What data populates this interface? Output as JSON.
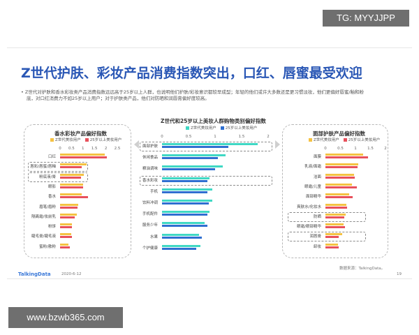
{
  "overlay": {
    "tg_label": "TG: MYYJJPP",
    "url_label": "www.bzwb365.com"
  },
  "slide": {
    "title": "Z世代护肤、彩妆产品消费指数突出，口红、唇蜜最受欢迎",
    "desc_line1": "• Z世代对护肤和香水彩妆类产品消费指数远远高于25岁以上人群，也说明他们护肤/彩妆意识都较早成型；年轻的他们或许大多数还是更习惯淡妆，他们更偏好唇蜜/釉和粉",
    "desc_line2": "底，对口红消费力不如25岁以上用户；对于护肤类产品，他们对防晒和润唇膏偏好度较高。",
    "brand": "TalkingData",
    "date": "2020-6-12",
    "source": "数据来源：TalkingData。",
    "page": "19"
  },
  "colors": {
    "z_gen": "#f5c242",
    "over25": "#e8505b",
    "z_gen_center": "#3fd8c4",
    "over25_center": "#2f6fd1",
    "title": "#2a57b5"
  },
  "chart_data": [
    {
      "type": "bar",
      "orientation": "horizontal",
      "title": "香水彩妆产品偏好指数",
      "xlim": [
        0,
        2.5
      ],
      "xticks": [
        "0",
        "0.5",
        "1",
        "1.5",
        "2",
        "2.5"
      ],
      "categories": [
        "口红",
        "唇彩/唇蜜/唇釉",
        "粉底液/膏",
        "眼影",
        "香水",
        "眉笔/眉粉",
        "隔离霜/妆前乳",
        "粉饼",
        "睫毛膏/睫毛液",
        "蜜粉/散粉"
      ],
      "highlighted": [
        "唇彩/唇蜜/唇釉",
        "粉底液/膏"
      ],
      "series": [
        {
          "name": "Z世代美妆用户",
          "values": [
            1.95,
            1.15,
            1.05,
            1.0,
            0.95,
            0.78,
            0.72,
            0.52,
            0.48,
            0.38
          ]
        },
        {
          "name": "25岁以上美妆用户",
          "values": [
            2.05,
            0.95,
            0.9,
            1.0,
            1.22,
            0.75,
            0.65,
            0.52,
            0.52,
            0.42
          ]
        }
      ]
    },
    {
      "type": "bar",
      "orientation": "horizontal",
      "title": "Z世代和25岁以上美妆人群购物类别偏好指数",
      "xlim": [
        0,
        2
      ],
      "xticks": [
        "0",
        "0.5",
        "1",
        "1.5",
        "2"
      ],
      "categories": [
        "面部护肤",
        "休闲食品",
        "粮油调味",
        "香水彩妆",
        "手机",
        "饮料冲调",
        "手机配件",
        "服务少年",
        "水果",
        "个护健康"
      ],
      "highlighted": [
        "面部护肤",
        "香水彩妆"
      ],
      "series": [
        {
          "name": "Z世代美妆用户",
          "values": [
            1.8,
            1.2,
            1.15,
            0.9,
            0.95,
            0.95,
            0.9,
            0.8,
            0.7,
            0.72
          ]
        },
        {
          "name": "25岁以上美妆用户",
          "values": [
            1.25,
            1.05,
            1.0,
            0.85,
            0.85,
            0.88,
            0.85,
            0.85,
            0.75,
            0.65
          ]
        }
      ]
    },
    {
      "type": "bar",
      "orientation": "horizontal",
      "title": "面部护肤产品偏好指数",
      "xlim": [
        0,
        2
      ],
      "xticks": [
        "0",
        "0.5",
        "1",
        "1.5",
        "2"
      ],
      "categories": [
        "面膜",
        "乳液/面霜",
        "洁面",
        "眼霜/儿童",
        "面部精华",
        "爽肤水/化妆水",
        "防晒",
        "眼霜/眼部精华",
        "润唇膏",
        "卸妆"
      ],
      "highlighted": [
        "防晒",
        "润唇膏"
      ],
      "series": [
        {
          "name": "Z世代美妆用户",
          "values": [
            1.25,
            1.1,
            0.95,
            0.88,
            0.8,
            0.7,
            0.68,
            0.6,
            0.55,
            0.42
          ]
        },
        {
          "name": "25岁以上美妆用户",
          "values": [
            1.42,
            1.08,
            0.98,
            1.05,
            0.9,
            0.72,
            0.62,
            0.65,
            0.45,
            0.45
          ]
        }
      ]
    }
  ]
}
